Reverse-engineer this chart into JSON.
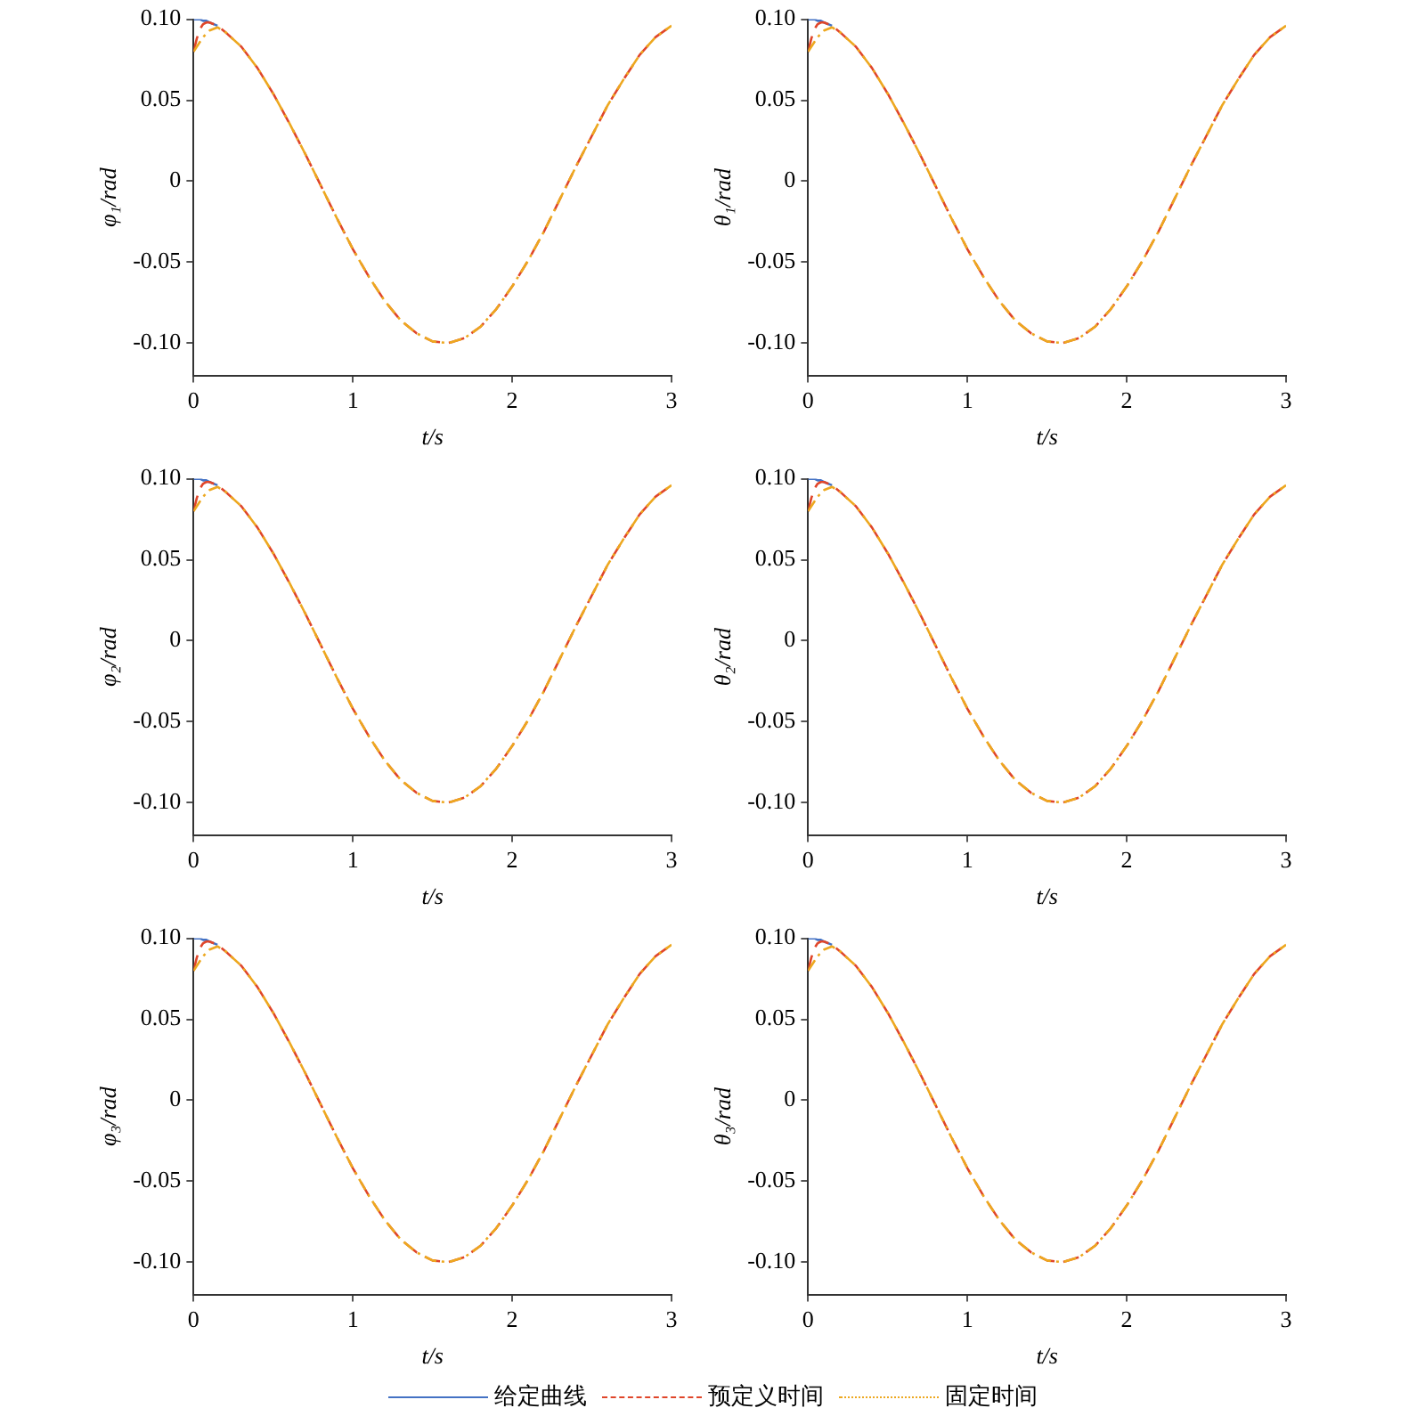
{
  "chart_data": [
    {
      "type": "line",
      "xlabel": "t/s",
      "ylabel": "φ₁/rad",
      "xlim": [
        0,
        3
      ],
      "xticks": [
        0,
        1,
        2,
        3
      ],
      "ylim": [
        -0.12,
        0.1
      ],
      "yticks": [
        {
          "value": -0.1,
          "label": "-0.10"
        },
        {
          "value": -0.05,
          "label": "-0.05"
        },
        {
          "value": 0,
          "label": "0"
        },
        {
          "value": 0.05,
          "label": "0.05"
        },
        {
          "value": 0.1,
          "label": "0.10"
        }
      ],
      "grid": false,
      "x": [
        0,
        0.02,
        0.04,
        0.06,
        0.08,
        0.1,
        0.15,
        0.2,
        0.3,
        0.4,
        0.5,
        0.6,
        0.7,
        0.8,
        0.9,
        1.0,
        1.1,
        1.2,
        1.3,
        1.4,
        1.5,
        1.6,
        1.7,
        1.8,
        1.9,
        2.0,
        2.1,
        2.2,
        2.3,
        2.4,
        2.5,
        2.6,
        2.7,
        2.8,
        2.9,
        3.0
      ],
      "series": [
        {
          "color": "#4472c4",
          "line_style": "solid",
          "values": [
            0.1,
            0.1,
            0.1,
            0.099,
            0.099,
            0.098,
            0.096,
            null,
            null,
            null,
            null,
            null,
            null,
            null,
            null,
            null,
            null,
            null,
            null,
            null,
            null,
            null,
            null,
            null,
            null,
            null,
            null,
            null,
            null,
            null,
            null,
            null,
            null,
            null,
            null,
            null
          ]
        },
        {
          "color": "#e0462a",
          "line_style": "dashed",
          "values": [
            0.08,
            0.088,
            0.094,
            0.097,
            0.098,
            0.098,
            0.096,
            0.092,
            0.083,
            0.07,
            0.054,
            0.036,
            0.017,
            -0.003,
            -0.023,
            -0.042,
            -0.059,
            -0.074,
            -0.086,
            -0.094,
            -0.099,
            -0.1,
            -0.097,
            -0.09,
            -0.079,
            -0.065,
            -0.049,
            -0.031,
            -0.011,
            0.009,
            0.028,
            0.047,
            0.063,
            0.078,
            0.089,
            0.096
          ]
        },
        {
          "color": "#eda820",
          "line_style": "dotted",
          "values": [
            0.08,
            0.083,
            0.086,
            0.089,
            0.091,
            0.093,
            0.095,
            0.092,
            0.083,
            0.07,
            0.054,
            0.036,
            0.017,
            -0.003,
            -0.023,
            -0.042,
            -0.059,
            -0.074,
            -0.086,
            -0.094,
            -0.099,
            -0.1,
            -0.097,
            -0.09,
            -0.079,
            -0.065,
            -0.049,
            -0.031,
            -0.011,
            0.009,
            0.028,
            0.047,
            0.063,
            0.078,
            0.089,
            0.096
          ]
        }
      ]
    },
    {
      "type": "line",
      "xlabel": "t/s",
      "ylabel": "θ₁/rad",
      "xlim": [
        0,
        3
      ],
      "xticks": [
        0,
        1,
        2,
        3
      ],
      "ylim": [
        -0.12,
        0.1
      ],
      "yticks": [
        {
          "value": -0.1,
          "label": "-0.10"
        },
        {
          "value": -0.05,
          "label": "-0.05"
        },
        {
          "value": 0,
          "label": "0"
        },
        {
          "value": 0.05,
          "label": "0.05"
        },
        {
          "value": 0.1,
          "label": "0.10"
        }
      ],
      "grid": false,
      "x": [
        0,
        0.02,
        0.04,
        0.06,
        0.08,
        0.1,
        0.15,
        0.2,
        0.3,
        0.4,
        0.5,
        0.6,
        0.7,
        0.8,
        0.9,
        1.0,
        1.1,
        1.2,
        1.3,
        1.4,
        1.5,
        1.6,
        1.7,
        1.8,
        1.9,
        2.0,
        2.1,
        2.2,
        2.3,
        2.4,
        2.5,
        2.6,
        2.7,
        2.8,
        2.9,
        3.0
      ],
      "series": [
        {
          "color": "#4472c4",
          "line_style": "solid",
          "values": [
            0.1,
            0.1,
            0.1,
            0.099,
            0.099,
            0.098,
            0.096,
            null,
            null,
            null,
            null,
            null,
            null,
            null,
            null,
            null,
            null,
            null,
            null,
            null,
            null,
            null,
            null,
            null,
            null,
            null,
            null,
            null,
            null,
            null,
            null,
            null,
            null,
            null,
            null,
            null
          ]
        },
        {
          "color": "#e0462a",
          "line_style": "dashed",
          "values": [
            0.08,
            0.088,
            0.094,
            0.097,
            0.098,
            0.098,
            0.096,
            0.092,
            0.083,
            0.07,
            0.054,
            0.036,
            0.017,
            -0.003,
            -0.023,
            -0.042,
            -0.059,
            -0.074,
            -0.086,
            -0.094,
            -0.099,
            -0.1,
            -0.097,
            -0.09,
            -0.079,
            -0.065,
            -0.049,
            -0.031,
            -0.011,
            0.009,
            0.028,
            0.047,
            0.063,
            0.078,
            0.089,
            0.096
          ]
        },
        {
          "color": "#eda820",
          "line_style": "dotted",
          "values": [
            0.08,
            0.083,
            0.086,
            0.089,
            0.091,
            0.093,
            0.095,
            0.092,
            0.083,
            0.07,
            0.054,
            0.036,
            0.017,
            -0.003,
            -0.023,
            -0.042,
            -0.059,
            -0.074,
            -0.086,
            -0.094,
            -0.099,
            -0.1,
            -0.097,
            -0.09,
            -0.079,
            -0.065,
            -0.049,
            -0.031,
            -0.011,
            0.009,
            0.028,
            0.047,
            0.063,
            0.078,
            0.089,
            0.096
          ]
        }
      ]
    },
    {
      "type": "line",
      "xlabel": "t/s",
      "ylabel": "φ₂/rad",
      "xlim": [
        0,
        3
      ],
      "xticks": [
        0,
        1,
        2,
        3
      ],
      "ylim": [
        -0.12,
        0.1
      ],
      "yticks": [
        {
          "value": -0.1,
          "label": "-0.10"
        },
        {
          "value": -0.05,
          "label": "-0.05"
        },
        {
          "value": 0,
          "label": "0"
        },
        {
          "value": 0.05,
          "label": "0.05"
        },
        {
          "value": 0.1,
          "label": "0.10"
        }
      ],
      "grid": false,
      "x": [
        0,
        0.02,
        0.04,
        0.06,
        0.08,
        0.1,
        0.15,
        0.2,
        0.3,
        0.4,
        0.5,
        0.6,
        0.7,
        0.8,
        0.9,
        1.0,
        1.1,
        1.2,
        1.3,
        1.4,
        1.5,
        1.6,
        1.7,
        1.8,
        1.9,
        2.0,
        2.1,
        2.2,
        2.3,
        2.4,
        2.5,
        2.6,
        2.7,
        2.8,
        2.9,
        3.0
      ],
      "series": [
        {
          "color": "#4472c4",
          "line_style": "solid",
          "values": [
            0.1,
            0.1,
            0.1,
            0.099,
            0.099,
            0.098,
            0.096,
            null,
            null,
            null,
            null,
            null,
            null,
            null,
            null,
            null,
            null,
            null,
            null,
            null,
            null,
            null,
            null,
            null,
            null,
            null,
            null,
            null,
            null,
            null,
            null,
            null,
            null,
            null,
            null,
            null
          ]
        },
        {
          "color": "#e0462a",
          "line_style": "dashed",
          "values": [
            0.08,
            0.088,
            0.094,
            0.097,
            0.098,
            0.098,
            0.096,
            0.092,
            0.083,
            0.07,
            0.054,
            0.036,
            0.017,
            -0.003,
            -0.023,
            -0.042,
            -0.059,
            -0.074,
            -0.086,
            -0.094,
            -0.099,
            -0.1,
            -0.097,
            -0.09,
            -0.079,
            -0.065,
            -0.049,
            -0.031,
            -0.011,
            0.009,
            0.028,
            0.047,
            0.063,
            0.078,
            0.089,
            0.096
          ]
        },
        {
          "color": "#eda820",
          "line_style": "dotted",
          "values": [
            0.08,
            0.083,
            0.086,
            0.089,
            0.091,
            0.093,
            0.095,
            0.092,
            0.083,
            0.07,
            0.054,
            0.036,
            0.017,
            -0.003,
            -0.023,
            -0.042,
            -0.059,
            -0.074,
            -0.086,
            -0.094,
            -0.099,
            -0.1,
            -0.097,
            -0.09,
            -0.079,
            -0.065,
            -0.049,
            -0.031,
            -0.011,
            0.009,
            0.028,
            0.047,
            0.063,
            0.078,
            0.089,
            0.096
          ]
        }
      ]
    },
    {
      "type": "line",
      "xlabel": "t/s",
      "ylabel": "θ₂/rad",
      "xlim": [
        0,
        3
      ],
      "xticks": [
        0,
        1,
        2,
        3
      ],
      "ylim": [
        -0.12,
        0.1
      ],
      "yticks": [
        {
          "value": -0.1,
          "label": "-0.10"
        },
        {
          "value": -0.05,
          "label": "-0.05"
        },
        {
          "value": 0,
          "label": "0"
        },
        {
          "value": 0.05,
          "label": "0.05"
        },
        {
          "value": 0.1,
          "label": "0.10"
        }
      ],
      "grid": false,
      "x": [
        0,
        0.02,
        0.04,
        0.06,
        0.08,
        0.1,
        0.15,
        0.2,
        0.3,
        0.4,
        0.5,
        0.6,
        0.7,
        0.8,
        0.9,
        1.0,
        1.1,
        1.2,
        1.3,
        1.4,
        1.5,
        1.6,
        1.7,
        1.8,
        1.9,
        2.0,
        2.1,
        2.2,
        2.3,
        2.4,
        2.5,
        2.6,
        2.7,
        2.8,
        2.9,
        3.0
      ],
      "series": [
        {
          "color": "#4472c4",
          "line_style": "solid",
          "values": [
            0.1,
            0.1,
            0.1,
            0.099,
            0.099,
            0.098,
            0.096,
            null,
            null,
            null,
            null,
            null,
            null,
            null,
            null,
            null,
            null,
            null,
            null,
            null,
            null,
            null,
            null,
            null,
            null,
            null,
            null,
            null,
            null,
            null,
            null,
            null,
            null,
            null,
            null,
            null
          ]
        },
        {
          "color": "#e0462a",
          "line_style": "dashed",
          "values": [
            0.08,
            0.088,
            0.094,
            0.097,
            0.098,
            0.098,
            0.096,
            0.092,
            0.083,
            0.07,
            0.054,
            0.036,
            0.017,
            -0.003,
            -0.023,
            -0.042,
            -0.059,
            -0.074,
            -0.086,
            -0.094,
            -0.099,
            -0.1,
            -0.097,
            -0.09,
            -0.079,
            -0.065,
            -0.049,
            -0.031,
            -0.011,
            0.009,
            0.028,
            0.047,
            0.063,
            0.078,
            0.089,
            0.096
          ]
        },
        {
          "color": "#eda820",
          "line_style": "dotted",
          "values": [
            0.08,
            0.083,
            0.086,
            0.089,
            0.091,
            0.093,
            0.095,
            0.092,
            0.083,
            0.07,
            0.054,
            0.036,
            0.017,
            -0.003,
            -0.023,
            -0.042,
            -0.059,
            -0.074,
            -0.086,
            -0.094,
            -0.099,
            -0.1,
            -0.097,
            -0.09,
            -0.079,
            -0.065,
            -0.049,
            -0.031,
            -0.011,
            0.009,
            0.028,
            0.047,
            0.063,
            0.078,
            0.089,
            0.096
          ]
        }
      ]
    },
    {
      "type": "line",
      "xlabel": "t/s",
      "ylabel": "φ₃/rad",
      "xlim": [
        0,
        3
      ],
      "xticks": [
        0,
        1,
        2,
        3
      ],
      "ylim": [
        -0.12,
        0.1
      ],
      "yticks": [
        {
          "value": -0.1,
          "label": "-0.10"
        },
        {
          "value": -0.05,
          "label": "-0.05"
        },
        {
          "value": 0,
          "label": "0"
        },
        {
          "value": 0.05,
          "label": "0.05"
        },
        {
          "value": 0.1,
          "label": "0.10"
        }
      ],
      "grid": false,
      "x": [
        0,
        0.02,
        0.04,
        0.06,
        0.08,
        0.1,
        0.15,
        0.2,
        0.3,
        0.4,
        0.5,
        0.6,
        0.7,
        0.8,
        0.9,
        1.0,
        1.1,
        1.2,
        1.3,
        1.4,
        1.5,
        1.6,
        1.7,
        1.8,
        1.9,
        2.0,
        2.1,
        2.2,
        2.3,
        2.4,
        2.5,
        2.6,
        2.7,
        2.8,
        2.9,
        3.0
      ],
      "series": [
        {
          "color": "#4472c4",
          "line_style": "solid",
          "values": [
            0.1,
            0.1,
            0.1,
            0.099,
            0.099,
            0.098,
            0.096,
            null,
            null,
            null,
            null,
            null,
            null,
            null,
            null,
            null,
            null,
            null,
            null,
            null,
            null,
            null,
            null,
            null,
            null,
            null,
            null,
            null,
            null,
            null,
            null,
            null,
            null,
            null,
            null,
            null
          ]
        },
        {
          "color": "#e0462a",
          "line_style": "dashed",
          "values": [
            0.08,
            0.088,
            0.094,
            0.097,
            0.098,
            0.098,
            0.096,
            0.092,
            0.083,
            0.07,
            0.054,
            0.036,
            0.017,
            -0.003,
            -0.023,
            -0.042,
            -0.059,
            -0.074,
            -0.086,
            -0.094,
            -0.099,
            -0.1,
            -0.097,
            -0.09,
            -0.079,
            -0.065,
            -0.049,
            -0.031,
            -0.011,
            0.009,
            0.028,
            0.047,
            0.063,
            0.078,
            0.089,
            0.096
          ]
        },
        {
          "color": "#eda820",
          "line_style": "dotted",
          "values": [
            0.08,
            0.083,
            0.086,
            0.089,
            0.091,
            0.093,
            0.095,
            0.092,
            0.083,
            0.07,
            0.054,
            0.036,
            0.017,
            -0.003,
            -0.023,
            -0.042,
            -0.059,
            -0.074,
            -0.086,
            -0.094,
            -0.099,
            -0.1,
            -0.097,
            -0.09,
            -0.079,
            -0.065,
            -0.049,
            -0.031,
            -0.011,
            0.009,
            0.028,
            0.047,
            0.063,
            0.078,
            0.089,
            0.096
          ]
        }
      ]
    },
    {
      "type": "line",
      "xlabel": "t/s",
      "ylabel": "θ₃/rad",
      "xlim": [
        0,
        3
      ],
      "xticks": [
        0,
        1,
        2,
        3
      ],
      "ylim": [
        -0.12,
        0.1
      ],
      "yticks": [
        {
          "value": -0.1,
          "label": "-0.10"
        },
        {
          "value": -0.05,
          "label": "-0.05"
        },
        {
          "value": 0,
          "label": "0"
        },
        {
          "value": 0.05,
          "label": "0.05"
        },
        {
          "value": 0.1,
          "label": "0.10"
        }
      ],
      "grid": false,
      "legend": "bottom",
      "x": [
        0,
        0.02,
        0.04,
        0.06,
        0.08,
        0.1,
        0.15,
        0.2,
        0.3,
        0.4,
        0.5,
        0.6,
        0.7,
        0.8,
        0.9,
        1.0,
        1.1,
        1.2,
        1.3,
        1.4,
        1.5,
        1.6,
        1.7,
        1.8,
        1.9,
        2.0,
        2.1,
        2.2,
        2.3,
        2.4,
        2.5,
        2.6,
        2.7,
        2.8,
        2.9,
        3.0
      ],
      "series": [
        {
          "name": "给定曲线",
          "color": "#4472c4",
          "line_style": "solid",
          "values": [
            0.1,
            0.1,
            0.1,
            0.099,
            0.099,
            0.098,
            0.096,
            null,
            null,
            null,
            null,
            null,
            null,
            null,
            null,
            null,
            null,
            null,
            null,
            null,
            null,
            null,
            null,
            null,
            null,
            null,
            null,
            null,
            null,
            null,
            null,
            null,
            null,
            null,
            null,
            null
          ]
        },
        {
          "name": "预定义时间",
          "color": "#e0462a",
          "line_style": "dashed",
          "values": [
            0.08,
            0.088,
            0.094,
            0.097,
            0.098,
            0.098,
            0.096,
            0.092,
            0.083,
            0.07,
            0.054,
            0.036,
            0.017,
            -0.003,
            -0.023,
            -0.042,
            -0.059,
            -0.074,
            -0.086,
            -0.094,
            -0.099,
            -0.1,
            -0.097,
            -0.09,
            -0.079,
            -0.065,
            -0.049,
            -0.031,
            -0.011,
            0.009,
            0.028,
            0.047,
            0.063,
            0.078,
            0.089,
            0.096
          ]
        },
        {
          "name": "固定时间",
          "color": "#eda820",
          "line_style": "dotted",
          "values": [
            0.08,
            0.083,
            0.086,
            0.089,
            0.091,
            0.093,
            0.095,
            0.092,
            0.083,
            0.07,
            0.054,
            0.036,
            0.017,
            -0.003,
            -0.023,
            -0.042,
            -0.059,
            -0.074,
            -0.086,
            -0.094,
            -0.099,
            -0.1,
            -0.097,
            -0.09,
            -0.079,
            -0.065,
            -0.049,
            -0.031,
            -0.011,
            0.009,
            0.028,
            0.047,
            0.063,
            0.078,
            0.089,
            0.096
          ]
        }
      ]
    }
  ]
}
